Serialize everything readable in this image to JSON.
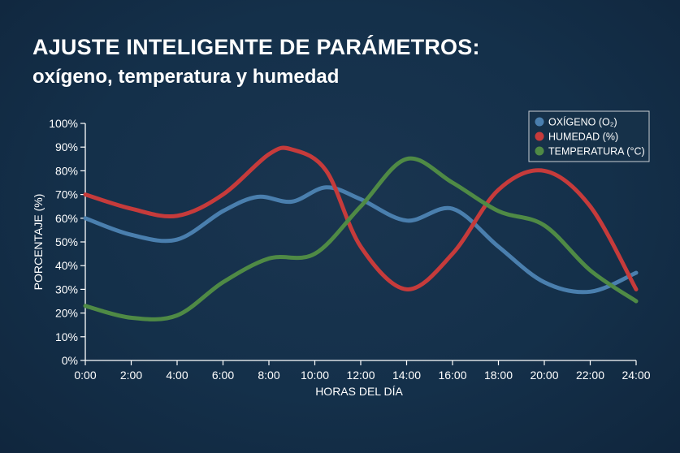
{
  "header": {
    "title": "AJUSTE INTELIGENTE DE PARÁMETROS:",
    "subtitle": "oxígeno, temperatura y humedad"
  },
  "colors": {
    "background": "#14304a",
    "oxygen": "#4a7fae",
    "humidity": "#c63b3b",
    "temperature": "#4f8a45",
    "axis": "#ffffff",
    "legend_border": "#c9ced4"
  },
  "chart_data": {
    "type": "line",
    "title": "AJUSTE INTELIGENTE DE PARÁMETROS:",
    "subtitle": "oxígeno, temperatura y humedad",
    "xlabel": "HORAS DEL DÍA",
    "ylabel": "PORCENTAJE (%)",
    "xlim": [
      0,
      24
    ],
    "ylim": [
      0,
      100
    ],
    "x_tick_labels": [
      "0:00",
      "2:00",
      "4:00",
      "6:00",
      "8:00",
      "10:00",
      "12:00",
      "14:00",
      "16:00",
      "18:00",
      "20:00",
      "22:00",
      "24:00"
    ],
    "y_tick_labels": [
      "0%",
      "10%",
      "20%",
      "30%",
      "40%",
      "50%",
      "60%",
      "70%",
      "80%",
      "90%",
      "100%"
    ],
    "grid": false,
    "legend_position": "top-right",
    "series": [
      {
        "name": "OXÍGENO (O₂)",
        "color": "#4a7fae",
        "x": [
          0,
          2,
          4,
          6,
          7.5,
          9,
          10.5,
          12,
          14,
          16,
          18,
          20,
          22,
          24
        ],
        "y": [
          60,
          53,
          51,
          63,
          69,
          67,
          73,
          68,
          59,
          64,
          48,
          33,
          29,
          37
        ]
      },
      {
        "name": "HUMEDAD (%)",
        "color": "#c63b3b",
        "x": [
          0,
          2,
          4,
          6,
          8,
          9,
          10.5,
          12,
          14,
          16,
          18,
          20,
          22,
          24
        ],
        "y": [
          70,
          64,
          61,
          70,
          87,
          89,
          80,
          48,
          30,
          45,
          72,
          80,
          65,
          30
        ]
      },
      {
        "name": "TEMPERATURA (°C)",
        "color": "#4f8a45",
        "x": [
          0,
          2,
          4,
          6,
          8,
          10,
          12,
          14,
          16,
          18,
          20,
          22,
          24
        ],
        "y": [
          23,
          18,
          19,
          33,
          43,
          45,
          65,
          85,
          75,
          63,
          57,
          38,
          25
        ]
      }
    ]
  }
}
